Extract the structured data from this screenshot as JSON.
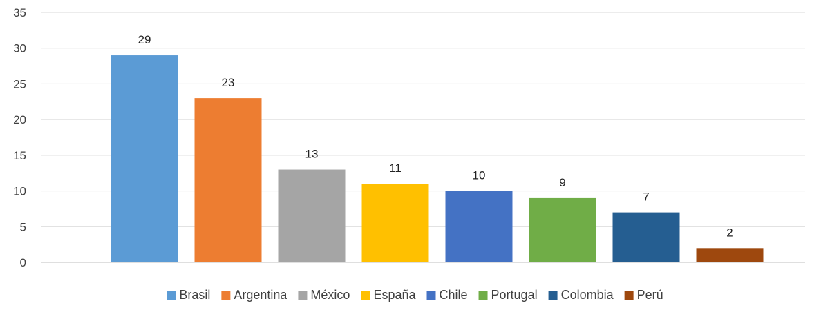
{
  "chart_data": {
    "type": "bar",
    "title": "",
    "xlabel": "",
    "ylabel": "",
    "categories": [
      "Brasil",
      "Argentina",
      "México",
      "España",
      "Chile",
      "Portugal",
      "Colombia",
      "Perú"
    ],
    "values": [
      29,
      23,
      13,
      11,
      10,
      9,
      7,
      2
    ],
    "colors": [
      "#5b9bd5",
      "#ed7d31",
      "#a5a5a5",
      "#ffc000",
      "#4472c4",
      "#70ad47",
      "#255e91",
      "#9e480e"
    ],
    "ylim": [
      0,
      35
    ],
    "yticks": [
      0,
      5,
      10,
      15,
      20,
      25,
      30,
      35
    ],
    "grid": true,
    "legend": "bottom",
    "data_labels": true
  }
}
